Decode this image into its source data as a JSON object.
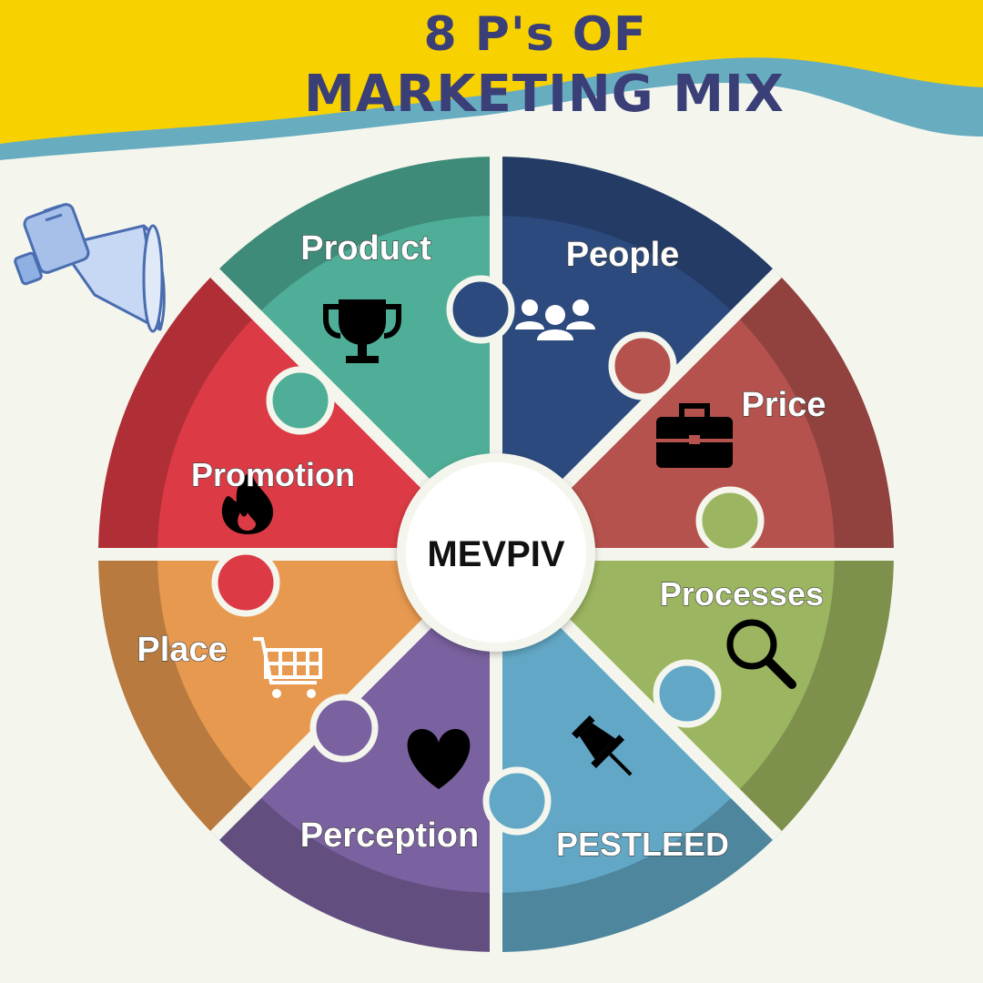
{
  "title": {
    "line1": "8 P's OF",
    "line2": "MARKETING MIX"
  },
  "center": {
    "label": "MEVPIV"
  },
  "segments": [
    {
      "label": "Product",
      "icon": "trophy-icon",
      "color": "#4fae97"
    },
    {
      "label": "People",
      "icon": "people-group-icon",
      "color": "#2c4a7e"
    },
    {
      "label": "Price",
      "icon": "briefcase-icon",
      "color": "#b5524e"
    },
    {
      "label": "Processes",
      "icon": "magnifier-icon",
      "color": "#9cb560"
    },
    {
      "label": "PESTLEED",
      "icon": "pushpin-icon",
      "color": "#62a8c6"
    },
    {
      "label": "Perception",
      "icon": "heart-icon",
      "color": "#7a619f"
    },
    {
      "label": "Place",
      "icon": "shopping-cart-icon",
      "color": "#e7994f"
    },
    {
      "label": "Promotion",
      "icon": "flame-icon",
      "color": "#dc3b45"
    }
  ],
  "colors": {
    "banner_yellow": "#f8d200",
    "banner_teal": "#68acc0",
    "title_text": "#3b3f78",
    "background": "#f4f6ee"
  }
}
